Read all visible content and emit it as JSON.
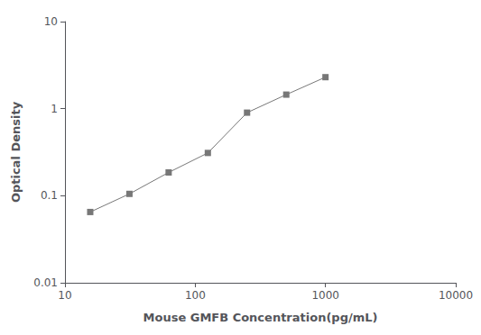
{
  "chart_data": {
    "type": "line",
    "x": [
      15.625,
      31.25,
      62.5,
      125,
      250,
      500,
      1000
    ],
    "values": [
      0.065,
      0.105,
      0.185,
      0.31,
      0.9,
      1.45,
      2.3
    ],
    "xlabel": "Mouse GMFB Concentration(pg/mL)",
    "ylabel": "Optical Density",
    "xlim": [
      10,
      10000
    ],
    "ylim": [
      0.01,
      10
    ],
    "xticks": [
      10,
      100,
      1000,
      10000
    ],
    "yticks": [
      0.01,
      0.1,
      1,
      10
    ],
    "log": true,
    "grid": false,
    "color": "#777777",
    "marker": "square"
  }
}
